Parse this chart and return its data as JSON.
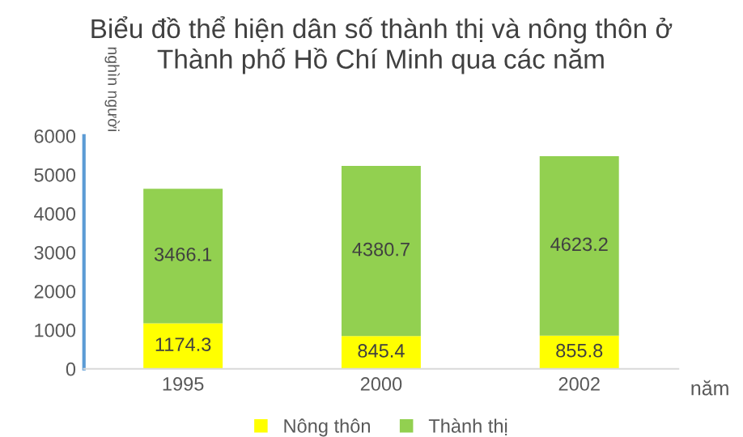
{
  "chart_data": {
    "type": "bar",
    "title": "Biểu đồ thể hiện dân số thành thị và nông thôn ở\nThành phố Hồ Chí Minh qua các năm",
    "xlabel": "năm",
    "ylabel": "nghìn người",
    "categories": [
      "1995",
      "2000",
      "2002"
    ],
    "series": [
      {
        "name": "Nông thôn",
        "color": "#ffff00",
        "values": [
          1174.3,
          845.4,
          855.8
        ]
      },
      {
        "name": "Thành thị",
        "color": "#92d050",
        "values": [
          3466.1,
          4380.7,
          4623.2
        ]
      }
    ],
    "stacked": true,
    "data_labels": true,
    "ylim": [
      0,
      6000
    ],
    "yticks": [
      0,
      1000,
      2000,
      3000,
      4000,
      5000,
      6000
    ],
    "grid": false,
    "legend": "bottom"
  }
}
